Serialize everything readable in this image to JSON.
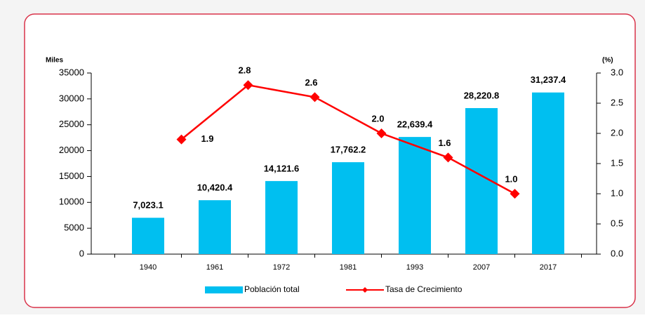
{
  "chart_data": {
    "type": "bar",
    "ylabel": "Miles",
    "y2label": "(%)",
    "categories": [
      "1940",
      "1961",
      "1972",
      "1981",
      "1993",
      "2007",
      "2017"
    ],
    "series": [
      {
        "name": "Población total",
        "type": "bar",
        "color": "#00bff0",
        "values": [
          7023.1,
          10420.4,
          14121.6,
          17762.2,
          22639.4,
          28220.8,
          31237.4
        ],
        "value_labels": [
          "7,023.1",
          "10,420.4",
          "14,121.6",
          "17,762.2",
          "22,639.4",
          "28,220.8",
          "31,237.4"
        ]
      },
      {
        "name": "Tasa de Crecimiento",
        "type": "line",
        "axis": "y2",
        "color": "#ff0000",
        "values": [
          null,
          1.9,
          2.8,
          2.6,
          2.0,
          1.6,
          1.0
        ],
        "value_labels": [
          null,
          "1.9",
          "2.8",
          "2.6",
          "2.0",
          "1.6",
          "1.0"
        ]
      }
    ],
    "ylim": [
      0,
      35000
    ],
    "yticks": [
      0,
      5000,
      10000,
      15000,
      20000,
      25000,
      30000,
      35000
    ],
    "y2lim": [
      0,
      3.0
    ],
    "y2ticks": [
      {
        "value": 0,
        "label": "0.0"
      },
      {
        "value": 0.5,
        "label": "0.5"
      },
      {
        "value": 1.0,
        "label": "1.0"
      },
      {
        "value": 1.5,
        "label": "1.5"
      },
      {
        "value": 2.0,
        "label": "2.0"
      },
      {
        "value": 2.5,
        "label": "2.5"
      },
      {
        "value": 3.0,
        "label": "3.0"
      }
    ],
    "legend": "bottom"
  }
}
